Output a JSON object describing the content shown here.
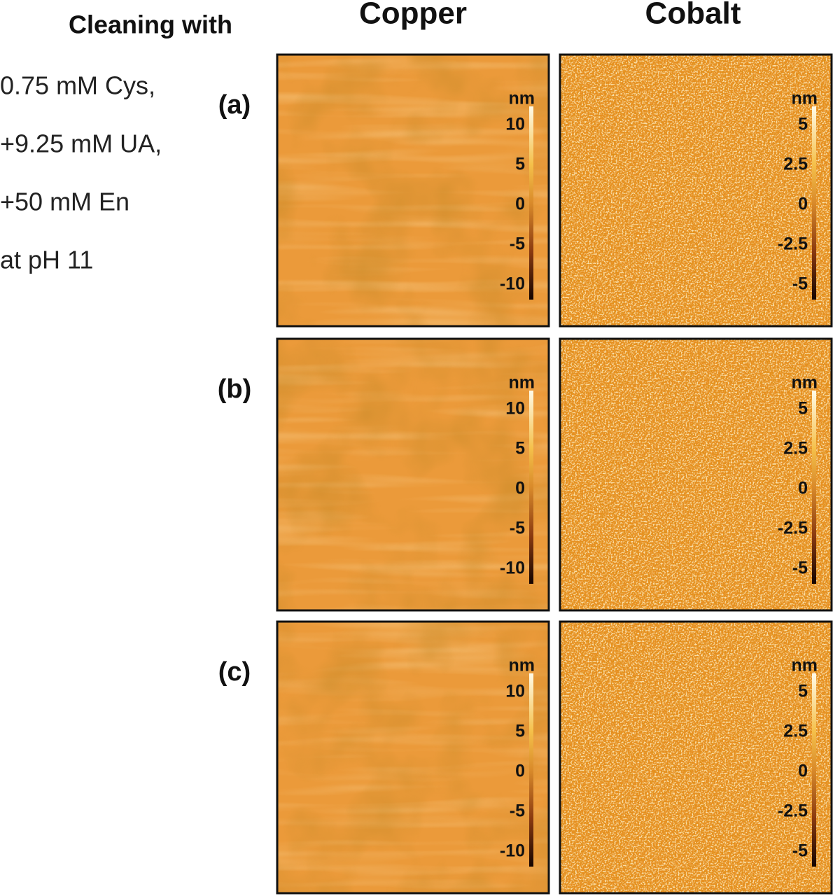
{
  "header": {
    "title": "Cleaning with",
    "columns": [
      "Copper",
      "Cobalt"
    ]
  },
  "conditions": [
    "0.75 mM Cys,",
    "+9.25 mM UA,",
    "+50 mM En",
    "at pH 11"
  ],
  "rows": [
    {
      "label": "(a)",
      "panels": [
        {
          "unit": "nm",
          "ticks": [
            "10",
            "5",
            "0",
            "-5",
            "-10"
          ]
        },
        {
          "unit": "nm",
          "ticks": [
            "5",
            "2.5",
            "0",
            "-2.5",
            "-5"
          ]
        }
      ]
    },
    {
      "label": "(b)",
      "panels": [
        {
          "unit": "nm",
          "ticks": [
            "10",
            "5",
            "0",
            "-5",
            "-10"
          ]
        },
        {
          "unit": "nm",
          "ticks": [
            "5",
            "2.5",
            "0",
            "-2.5",
            "-5"
          ]
        }
      ]
    },
    {
      "label": "(c)",
      "panels": [
        {
          "unit": "nm",
          "ticks": [
            "10",
            "5",
            "0",
            "-5",
            "-10"
          ]
        },
        {
          "unit": "nm",
          "ticks": [
            "5",
            "2.5",
            "0",
            "-2.5",
            "-5"
          ]
        }
      ]
    }
  ]
}
